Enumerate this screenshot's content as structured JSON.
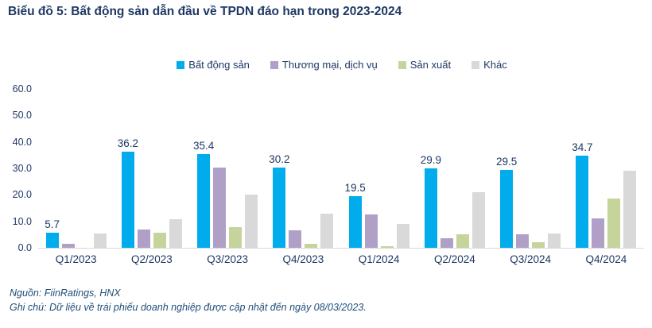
{
  "title": "Biểu đồ 5: Bất động sản dẫn đầu về TPDN đáo hạn trong 2023-2024",
  "chart_data": {
    "type": "bar",
    "categories": [
      "Q1/2023",
      "Q2/2023",
      "Q3/2023",
      "Q4/2023",
      "Q1/2024",
      "Q2/2024",
      "Q3/2024",
      "Q4/2024"
    ],
    "series": [
      {
        "name": "Bất động sản",
        "color": "#00ACEC",
        "values": [
          5.7,
          36.2,
          35.4,
          30.2,
          19.5,
          29.9,
          29.5,
          34.7
        ],
        "labels": [
          "5.7",
          "36.2",
          "35.4",
          "30.2",
          "19.5",
          "29.9",
          "29.5",
          "34.7"
        ]
      },
      {
        "name": "Thương mại, dịch vụ",
        "color": "#B0A0C8",
        "values": [
          1.5,
          7.0,
          30.3,
          6.5,
          12.5,
          3.7,
          5.0,
          11.0
        ]
      },
      {
        "name": "Sản xuất",
        "color": "#C5D49B",
        "values": [
          0,
          5.8,
          7.9,
          1.5,
          0.5,
          5.0,
          2.0,
          18.5
        ]
      },
      {
        "name": "Khác",
        "color": "#D9D9D9",
        "values": [
          5.5,
          10.8,
          20.2,
          12.8,
          9.0,
          21.0,
          5.5,
          29.0
        ]
      }
    ],
    "title": "Biểu đồ 5: Bất động sản dẫn đầu về TPDN đáo hạn trong 2023-2024",
    "xlabel": "",
    "ylabel": "",
    "ylim": [
      0,
      60
    ],
    "yticks": [
      "0.0",
      "10.0",
      "20.0",
      "30.0",
      "40.0",
      "50.0",
      "60.0"
    ],
    "grid": false,
    "legend_position": "top"
  },
  "footer": {
    "source": "Nguồn: FiinRatings, HNX",
    "note": "Ghi chú: Dữ liệu về trái phiếu doanh nghiệp được cập nhật đến ngày 08/03/2023."
  },
  "colors": {
    "title_text": "#1F3864",
    "axis_text": "#1F3864",
    "footer_text": "#1F4E79",
    "axis_line": "#D8D8D8"
  }
}
